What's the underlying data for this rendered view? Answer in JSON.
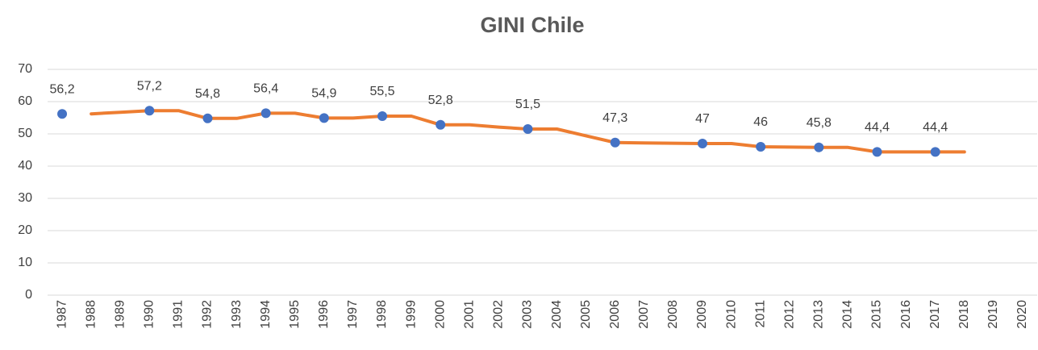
{
  "chart_data": {
    "type": "line",
    "title": "GINI Chile",
    "categories": [
      "1987",
      "1988",
      "1989",
      "1990",
      "1991",
      "1992",
      "1993",
      "1994",
      "1995",
      "1996",
      "1997",
      "1998",
      "1999",
      "2000",
      "2001",
      "2002",
      "2003",
      "2004",
      "2005",
      "2006",
      "2007",
      "2008",
      "2009",
      "2010",
      "2011",
      "2012",
      "2013",
      "2014",
      "2015",
      "2016",
      "2017",
      "2018",
      "2019",
      "2020"
    ],
    "series": [
      {
        "color": "#ed7d31",
        "style": "line",
        "values": [
          null,
          56.2,
          56.7,
          57.2,
          57.2,
          54.8,
          54.8,
          56.4,
          56.4,
          54.9,
          54.9,
          55.5,
          55.5,
          52.8,
          52.8,
          52.1,
          51.5,
          51.5,
          49.4,
          47.3,
          47.2,
          47.1,
          47,
          47,
          46,
          45.9,
          45.8,
          45.8,
          44.4,
          44.4,
          44.4,
          44.4,
          null,
          null
        ]
      },
      {
        "color": "#4472c4",
        "style": "markers",
        "values": [
          56.2,
          null,
          null,
          57.2,
          null,
          54.8,
          null,
          56.4,
          null,
          54.9,
          null,
          55.5,
          null,
          52.8,
          null,
          null,
          51.5,
          null,
          null,
          47.3,
          null,
          null,
          47,
          null,
          46,
          null,
          45.8,
          null,
          44.4,
          null,
          44.4,
          null,
          null,
          null
        ],
        "value_labels": [
          "56,2",
          null,
          null,
          "57,2",
          null,
          "54,8",
          null,
          "56,4",
          null,
          "54,9",
          null,
          "55,5",
          null,
          "52,8",
          null,
          null,
          "51,5",
          null,
          null,
          "47,3",
          null,
          null,
          "47",
          null,
          "46",
          null,
          "45,8",
          null,
          "44,4",
          null,
          "44,4",
          null,
          null,
          null
        ]
      }
    ],
    "ylim": [
      0,
      70
    ],
    "yticks": [
      0,
      10,
      20,
      30,
      40,
      50,
      60,
      70
    ],
    "grid": true
  }
}
